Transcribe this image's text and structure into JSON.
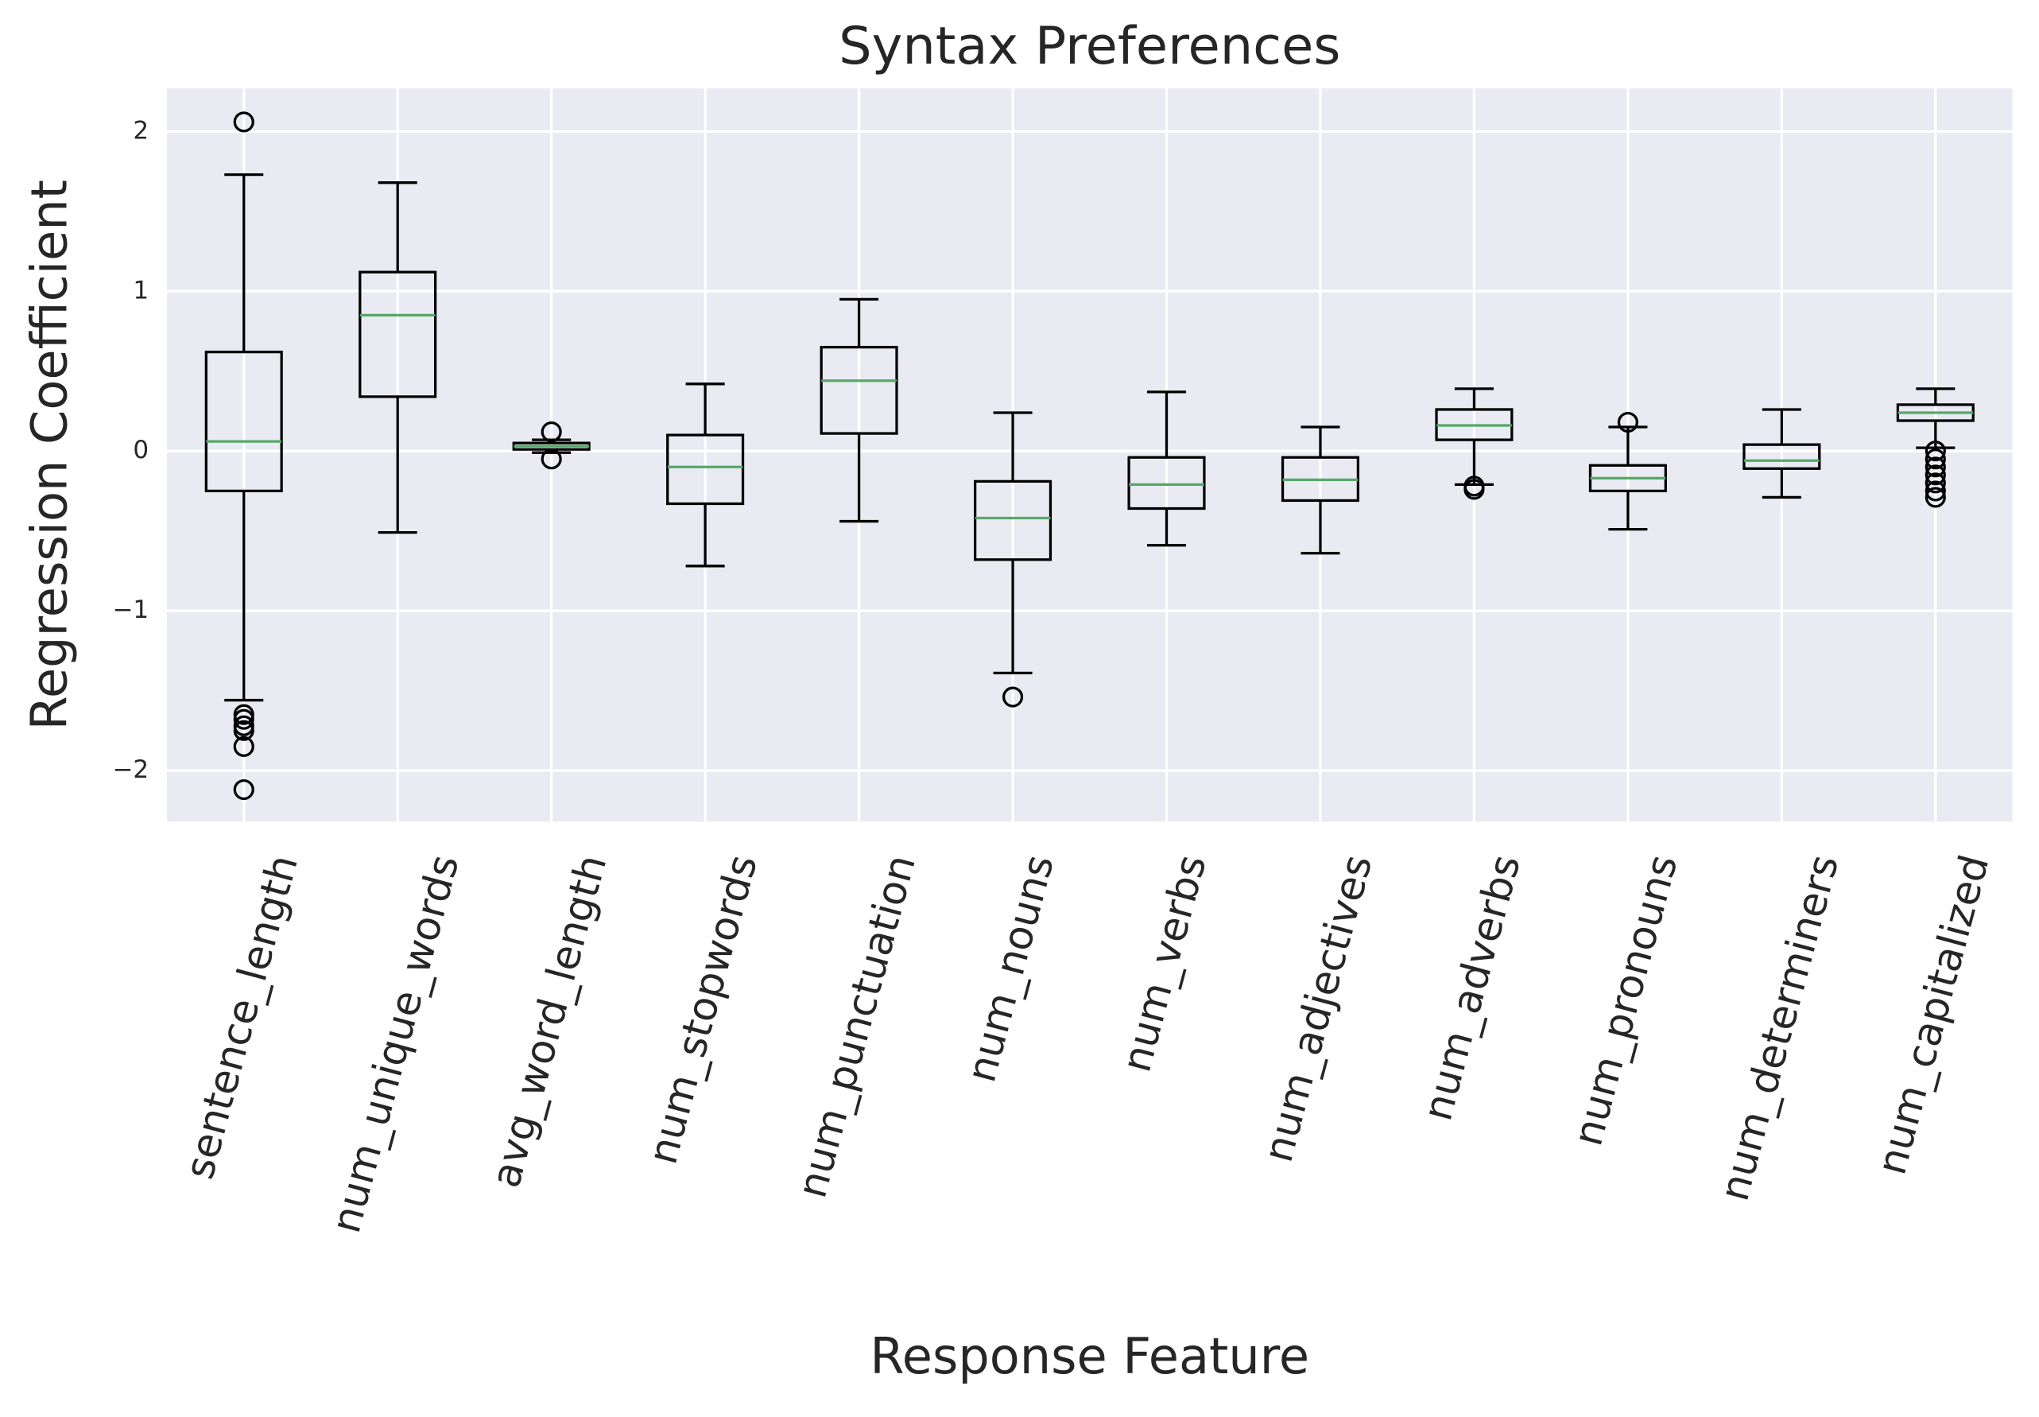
{
  "chart_data": {
    "type": "box",
    "title": "Syntax Preferences",
    "x_label": "Response Feature",
    "y_label": "Regression Coefficient",
    "categories": [
      "sentence_length",
      "num_unique_words",
      "avg_word_length",
      "num_stopwords",
      "num_punctuation",
      "num_nouns",
      "num_verbs",
      "num_adjectives",
      "num_adverbs",
      "num_pronouns",
      "num_determiners",
      "num_capitalized"
    ],
    "boxes": [
      {
        "whislo": -1.56,
        "q1": -0.25,
        "med": 0.06,
        "q3": 0.62,
        "whishi": 1.73,
        "fliers": [
          2.06,
          -1.65,
          -1.68,
          -1.72,
          -1.75,
          -1.85,
          -2.12
        ]
      },
      {
        "whislo": -0.51,
        "q1": 0.34,
        "med": 0.85,
        "q3": 1.12,
        "whishi": 1.68,
        "fliers": []
      },
      {
        "whislo": -0.01,
        "q1": 0.01,
        "med": 0.03,
        "q3": 0.05,
        "whishi": 0.07,
        "fliers": [
          0.12,
          -0.05
        ]
      },
      {
        "whislo": -0.72,
        "q1": -0.33,
        "med": -0.1,
        "q3": 0.1,
        "whishi": 0.42,
        "fliers": []
      },
      {
        "whislo": -0.44,
        "q1": 0.11,
        "med": 0.44,
        "q3": 0.65,
        "whishi": 0.95,
        "fliers": []
      },
      {
        "whislo": -1.39,
        "q1": -0.68,
        "med": -0.42,
        "q3": -0.19,
        "whishi": 0.24,
        "fliers": [
          -1.54
        ]
      },
      {
        "whislo": -0.59,
        "q1": -0.36,
        "med": -0.21,
        "q3": -0.04,
        "whishi": 0.37,
        "fliers": []
      },
      {
        "whislo": -0.64,
        "q1": -0.31,
        "med": -0.18,
        "q3": -0.04,
        "whishi": 0.15,
        "fliers": []
      },
      {
        "whislo": -0.21,
        "q1": 0.07,
        "med": 0.16,
        "q3": 0.26,
        "whishi": 0.39,
        "fliers": [
          -0.24,
          -0.22
        ]
      },
      {
        "whislo": -0.49,
        "q1": -0.25,
        "med": -0.17,
        "q3": -0.09,
        "whishi": 0.15,
        "fliers": [
          0.18
        ]
      },
      {
        "whislo": -0.29,
        "q1": -0.11,
        "med": -0.06,
        "q3": 0.04,
        "whishi": 0.26,
        "fliers": []
      },
      {
        "whislo": 0.02,
        "q1": 0.19,
        "med": 0.24,
        "q3": 0.29,
        "whishi": 0.39,
        "fliers": [
          0.0,
          -0.05,
          -0.1,
          -0.15,
          -0.2,
          -0.25,
          -0.29
        ]
      }
    ],
    "box_color": "#000000",
    "median_color": "#55a868",
    "background": "#eaeaf2",
    "grid": true,
    "xlim": [
      0.5,
      12.5
    ],
    "ylim": [
      -2.32,
      2.27
    ],
    "yticks": [
      {
        "value": -2,
        "label": "−2"
      },
      {
        "value": -1,
        "label": "−1"
      },
      0,
      1,
      2
    ]
  }
}
